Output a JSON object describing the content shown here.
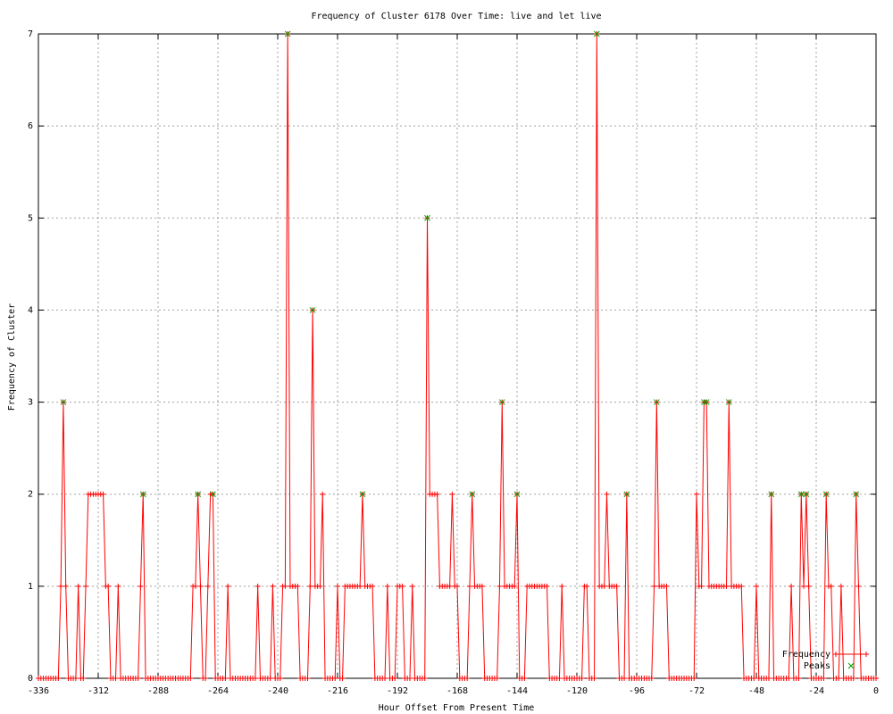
{
  "chart_data": {
    "type": "line",
    "title": "Frequency of Cluster 6178 Over Time: live and let live",
    "x_label": "Hour Offset From Present Time",
    "y_label": "Frequency of Cluster",
    "xlim": [
      -336,
      0
    ],
    "ylim": [
      0,
      7
    ],
    "xticks": [
      -336,
      -312,
      -288,
      -264,
      -240,
      -216,
      -192,
      -168,
      -144,
      -120,
      -96,
      -72,
      -48,
      -24,
      0
    ],
    "yticks": [
      0,
      1,
      2,
      3,
      4,
      5,
      6,
      7
    ],
    "grid": true,
    "legend": "bottom-right",
    "series": [
      {
        "name": "Frequency",
        "color": "#ff0000",
        "marker": "plus",
        "x": [
          -336,
          -335,
          -334,
          -333,
          -332,
          -331,
          -330,
          -329,
          -328,
          -327,
          -326,
          -325,
          -324,
          -323,
          -322,
          -321,
          -320,
          -319,
          -318,
          -317,
          -316,
          -315,
          -314,
          -313,
          -312,
          -311,
          -310,
          -309,
          -308,
          -307,
          -306,
          -305,
          -304,
          -303,
          -302,
          -301,
          -300,
          -299,
          -298,
          -297,
          -296,
          -295,
          -294,
          -293,
          -292,
          -291,
          -290,
          -289,
          -288,
          -287,
          -286,
          -285,
          -284,
          -283,
          -282,
          -281,
          -280,
          -279,
          -278,
          -277,
          -276,
          -275,
          -274,
          -273,
          -272,
          -271,
          -270,
          -269,
          -268,
          -267,
          -266,
          -265,
          -264,
          -263,
          -262,
          -261,
          -260,
          -259,
          -258,
          -257,
          -256,
          -255,
          -254,
          -253,
          -252,
          -251,
          -250,
          -249,
          -248,
          -247,
          -246,
          -245,
          -244,
          -243,
          -242,
          -241,
          -240,
          -239,
          -238,
          -237,
          -236,
          -235,
          -234,
          -233,
          -232,
          -231,
          -230,
          -229,
          -228,
          -227,
          -226,
          -225,
          -224,
          -223,
          -222,
          -221,
          -220,
          -219,
          -218,
          -217,
          -216,
          -215,
          -214,
          -213,
          -212,
          -211,
          -210,
          -209,
          -208,
          -207,
          -206,
          -205,
          -204,
          -203,
          -202,
          -201,
          -200,
          -199,
          -198,
          -197,
          -196,
          -195,
          -194,
          -193,
          -192,
          -191,
          -190,
          -189,
          -188,
          -187,
          -186,
          -185,
          -184,
          -183,
          -182,
          -181,
          -180,
          -179,
          -178,
          -177,
          -176,
          -175,
          -174,
          -173,
          -172,
          -171,
          -170,
          -169,
          -168,
          -167,
          -166,
          -165,
          -164,
          -163,
          -162,
          -161,
          -160,
          -159,
          -158,
          -157,
          -156,
          -155,
          -154,
          -153,
          -152,
          -151,
          -150,
          -149,
          -148,
          -147,
          -146,
          -145,
          -144,
          -143,
          -142,
          -141,
          -140,
          -139,
          -138,
          -137,
          -136,
          -135,
          -134,
          -133,
          -132,
          -131,
          -130,
          -129,
          -128,
          -127,
          -126,
          -125,
          -124,
          -123,
          -122,
          -121,
          -120,
          -119,
          -118,
          -117,
          -116,
          -115,
          -114,
          -113,
          -112,
          -111,
          -110,
          -109,
          -108,
          -107,
          -106,
          -105,
          -104,
          -103,
          -102,
          -101,
          -100,
          -99,
          -98,
          -97,
          -96,
          -95,
          -94,
          -93,
          -92,
          -91,
          -90,
          -89,
          -88,
          -87,
          -86,
          -85,
          -84,
          -83,
          -82,
          -81,
          -80,
          -79,
          -78,
          -77,
          -76,
          -75,
          -74,
          -73,
          -72,
          -71,
          -70,
          -69,
          -68,
          -67,
          -66,
          -65,
          -64,
          -63,
          -62,
          -61,
          -60,
          -59,
          -58,
          -57,
          -56,
          -55,
          -54,
          -53,
          -52,
          -51,
          -50,
          -49,
          -48,
          -47,
          -46,
          -45,
          -44,
          -43,
          -42,
          -41,
          -40,
          -39,
          -38,
          -37,
          -36,
          -35,
          -34,
          -33,
          -32,
          -31,
          -30,
          -29,
          -28,
          -27,
          -26,
          -25,
          -24,
          -23,
          -22,
          -21,
          -20,
          -19,
          -18,
          -17,
          -16,
          -15,
          -14,
          -13,
          -12,
          -11,
          -10,
          -9,
          -8,
          -7,
          -6,
          -5,
          -4,
          -3,
          -2,
          -1,
          0
        ],
        "values": [
          0,
          0,
          0,
          0,
          0,
          0,
          0,
          0,
          0,
          1,
          3,
          1,
          0,
          0,
          0,
          0,
          1,
          0,
          0,
          1,
          2,
          2,
          2,
          2,
          2,
          2,
          2,
          1,
          1,
          0,
          0,
          0,
          1,
          0,
          0,
          0,
          0,
          0,
          0,
          0,
          0,
          1,
          2,
          0,
          0,
          0,
          0,
          0,
          0,
          0,
          0,
          0,
          0,
          0,
          0,
          0,
          0,
          0,
          0,
          0,
          0,
          0,
          1,
          1,
          2,
          1,
          0,
          0,
          1,
          2,
          2,
          0,
          0,
          0,
          0,
          0,
          1,
          0,
          0,
          0,
          0,
          0,
          0,
          0,
          0,
          0,
          0,
          0,
          1,
          0,
          0,
          0,
          0,
          0,
          1,
          0,
          0,
          0,
          1,
          1,
          7,
          1,
          1,
          1,
          1,
          0,
          0,
          0,
          0,
          1,
          4,
          1,
          1,
          1,
          2,
          0,
          0,
          0,
          0,
          0,
          1,
          0,
          0,
          1,
          1,
          1,
          1,
          1,
          1,
          1,
          2,
          1,
          1,
          1,
          1,
          0,
          0,
          0,
          0,
          0,
          1,
          0,
          0,
          0,
          1,
          1,
          1,
          0,
          0,
          0,
          1,
          0,
          0,
          0,
          0,
          0,
          5,
          2,
          2,
          2,
          2,
          1,
          1,
          1,
          1,
          1,
          2,
          1,
          1,
          0,
          0,
          0,
          0,
          1,
          2,
          1,
          1,
          1,
          1,
          0,
          0,
          0,
          0,
          0,
          0,
          1,
          3,
          1,
          1,
          1,
          1,
          1,
          2,
          0,
          0,
          0,
          1,
          1,
          1,
          1,
          1,
          1,
          1,
          1,
          1,
          0,
          0,
          0,
          0,
          0,
          1,
          0,
          0,
          0,
          0,
          0,
          0,
          0,
          0,
          1,
          1,
          0,
          0,
          0,
          7,
          1,
          1,
          1,
          2,
          1,
          1,
          1,
          1,
          0,
          0,
          0,
          2,
          0,
          0,
          0,
          0,
          0,
          0,
          0,
          0,
          0,
          0,
          1,
          3,
          1,
          1,
          1,
          1,
          0,
          0,
          0,
          0,
          0,
          0,
          0,
          0,
          0,
          0,
          0,
          2,
          1,
          1,
          3,
          3,
          1,
          1,
          1,
          1,
          1,
          1,
          1,
          1,
          3,
          1,
          1,
          1,
          1,
          1,
          0,
          0,
          0,
          0,
          0,
          1,
          0,
          0,
          0,
          0,
          0,
          2,
          0,
          0,
          0,
          0,
          0,
          0,
          0,
          1,
          0,
          0,
          0,
          2,
          1,
          2,
          1,
          0,
          0,
          0,
          0,
          0,
          0,
          2,
          1,
          1,
          0,
          0,
          0,
          1,
          0,
          0,
          0,
          0,
          0,
          2,
          1,
          0,
          0,
          0,
          0,
          0,
          0,
          0
        ]
      },
      {
        "name": "Peaks",
        "color": "#00a000",
        "marker": "cross",
        "x": [
          -326,
          -294,
          -272,
          -266,
          -236,
          -226,
          -206,
          -180,
          -162,
          -150,
          -144,
          -112,
          -100,
          -88,
          -69,
          -68,
          -59,
          -42,
          -30,
          -28,
          -20,
          -8
        ],
        "values": [
          3,
          2,
          2,
          2,
          7,
          4,
          2,
          5,
          2,
          3,
          2,
          7,
          2,
          3,
          3,
          3,
          3,
          2,
          2,
          2,
          2,
          2
        ]
      }
    ]
  }
}
